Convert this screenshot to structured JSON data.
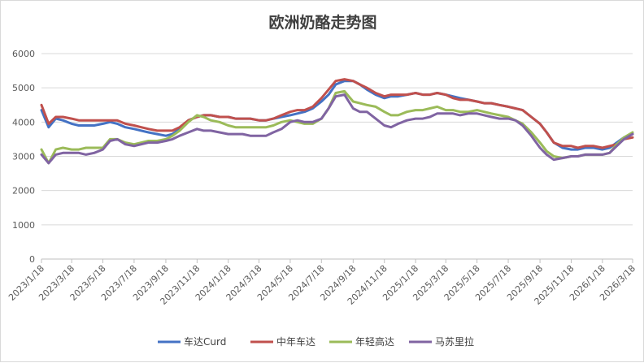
{
  "chart_data": {
    "type": "line",
    "title": "欧洲奶酪走势图",
    "xlabel": "",
    "ylabel": "",
    "ylim": [
      0,
      6000
    ],
    "yticks": [
      "0",
      "1000",
      "2000",
      "3000",
      "4000",
      "5000",
      "6000"
    ],
    "xticks": [
      "2023/1/18",
      "2023/3/18",
      "2023/5/18",
      "2023/7/18",
      "2023/9/18",
      "2023/11/18",
      "2024/1/18",
      "2024/3/18",
      "2024/5/18",
      "2024/7/18",
      "2024/9/18",
      "2024/11/18",
      "2025/1/18",
      "2025/3/18",
      "2025/5/18",
      "2025/7/18",
      "2025/9/18",
      "2025/11/18",
      "2026/1/18",
      "2026/3/18"
    ],
    "grid": "horizontal",
    "legend": "bottom",
    "x": [
      "2023/1/18",
      "2023/2/1",
      "2023/2/15",
      "2023/3/1",
      "2023/3/18",
      "2023/4/1",
      "2023/4/15",
      "2023/5/1",
      "2023/5/18",
      "2023/6/1",
      "2023/6/15",
      "2023/7/1",
      "2023/7/18",
      "2023/8/1",
      "2023/8/15",
      "2023/9/1",
      "2023/9/18",
      "2023/10/1",
      "2023/10/15",
      "2023/11/1",
      "2023/11/18",
      "2023/12/1",
      "2023/12/15",
      "2024/1/1",
      "2024/1/18",
      "2024/2/1",
      "2024/2/15",
      "2024/3/1",
      "2024/3/18",
      "2024/4/1",
      "2024/4/15",
      "2024/5/1",
      "2024/5/18",
      "2024/6/1",
      "2024/6/15",
      "2024/7/1",
      "2024/7/18",
      "2024/8/1",
      "2024/8/15",
      "2024/9/1",
      "2024/9/18",
      "2024/10/1",
      "2024/10/15",
      "2024/11/1",
      "2024/11/18",
      "2024/12/1",
      "2024/12/15",
      "2025/1/1",
      "2025/1/18",
      "2025/2/1",
      "2025/2/15",
      "2025/3/1",
      "2025/3/18",
      "2025/4/1",
      "2025/4/15",
      "2025/5/1",
      "2025/5/18",
      "2025/6/1",
      "2025/6/15",
      "2025/7/1",
      "2025/7/18",
      "2025/8/1",
      "2025/8/15",
      "2025/9/1",
      "2025/9/18",
      "2025/10/1",
      "2025/10/15",
      "2025/11/1",
      "2025/11/18",
      "2025/12/1",
      "2025/12/15",
      "2026/1/1",
      "2026/1/18",
      "2026/2/1",
      "2026/2/15",
      "2026/3/1",
      "2026/3/18"
    ],
    "series": [
      {
        "name": "车达Curd",
        "color": "#4472c4",
        "values": [
          4350,
          3850,
          4100,
          4050,
          3950,
          3900,
          3900,
          3900,
          3950,
          4000,
          3950,
          3850,
          3800,
          3750,
          3700,
          3650,
          3600,
          3650,
          3800,
          4050,
          4150,
          4200,
          4200,
          4150,
          4150,
          4100,
          4100,
          4100,
          4050,
          4050,
          4100,
          4150,
          4200,
          4250,
          4300,
          4400,
          4600,
          4800,
          5100,
          5200,
          5200,
          5100,
          4950,
          4800,
          4700,
          4750,
          4750,
          4800,
          4850,
          4800,
          4800,
          4850,
          4800,
          4750,
          4700,
          4650,
          4600,
          4550,
          4550,
          4500,
          4450,
          4400,
          4350,
          4150,
          3950,
          3700,
          3400,
          3250,
          3200,
          3200,
          3250,
          3250,
          3200,
          3250,
          3400,
          3550,
          3650
        ]
      },
      {
        "name": "中年车达",
        "color": "#c0504d",
        "values": [
          4500,
          3950,
          4150,
          4150,
          4100,
          4050,
          4050,
          4050,
          4050,
          4050,
          4050,
          3950,
          3900,
          3850,
          3800,
          3750,
          3750,
          3750,
          3850,
          4050,
          4150,
          4200,
          4200,
          4150,
          4150,
          4100,
          4100,
          4100,
          4050,
          4050,
          4100,
          4200,
          4300,
          4350,
          4350,
          4450,
          4700,
          4950,
          5200,
          5250,
          5200,
          5100,
          5000,
          4850,
          4750,
          4800,
          4800,
          4800,
          4850,
          4800,
          4800,
          4850,
          4800,
          4700,
          4650,
          4650,
          4600,
          4550,
          4550,
          4500,
          4450,
          4400,
          4350,
          4150,
          3950,
          3700,
          3400,
          3300,
          3300,
          3250,
          3300,
          3300,
          3250,
          3300,
          3350,
          3500,
          3550
        ]
      },
      {
        "name": "年轻高达",
        "color": "#9bbb59",
        "values": [
          3200,
          2800,
          3200,
          3250,
          3200,
          3200,
          3250,
          3250,
          3250,
          3500,
          3500,
          3400,
          3350,
          3400,
          3450,
          3450,
          3500,
          3600,
          3750,
          4000,
          4200,
          4150,
          4050,
          4000,
          3900,
          3850,
          3850,
          3850,
          3850,
          3850,
          3900,
          4000,
          4050,
          4000,
          3950,
          3950,
          4100,
          4400,
          4850,
          4900,
          4600,
          4550,
          4500,
          4450,
          4300,
          4200,
          4200,
          4300,
          4350,
          4350,
          4400,
          4450,
          4350,
          4350,
          4300,
          4300,
          4350,
          4300,
          4250,
          4200,
          4150,
          4050,
          3950,
          3700,
          3400,
          3150,
          3000,
          2950,
          3000,
          3000,
          3050,
          3050,
          3050,
          3100,
          3350,
          3550,
          3700
        ]
      },
      {
        "name": "马苏里拉",
        "color": "#8064a2",
        "values": [
          3050,
          2800,
          3050,
          3100,
          3100,
          3100,
          3050,
          3100,
          3200,
          3450,
          3500,
          3350,
          3300,
          3350,
          3400,
          3400,
          3450,
          3500,
          3600,
          3700,
          3800,
          3750,
          3750,
          3700,
          3650,
          3650,
          3650,
          3600,
          3600,
          3600,
          3700,
          3800,
          4000,
          4050,
          4000,
          4000,
          4100,
          4400,
          4750,
          4800,
          4400,
          4300,
          4300,
          4100,
          3900,
          3850,
          3950,
          4050,
          4100,
          4100,
          4150,
          4250,
          4250,
          4250,
          4200,
          4250,
          4250,
          4200,
          4150,
          4100,
          4100,
          4050,
          3900,
          3600,
          3250,
          3050,
          2900,
          2950,
          3000,
          3000,
          3050,
          3050,
          3050,
          3100,
          3300,
          3500,
          3650
        ]
      }
    ]
  }
}
